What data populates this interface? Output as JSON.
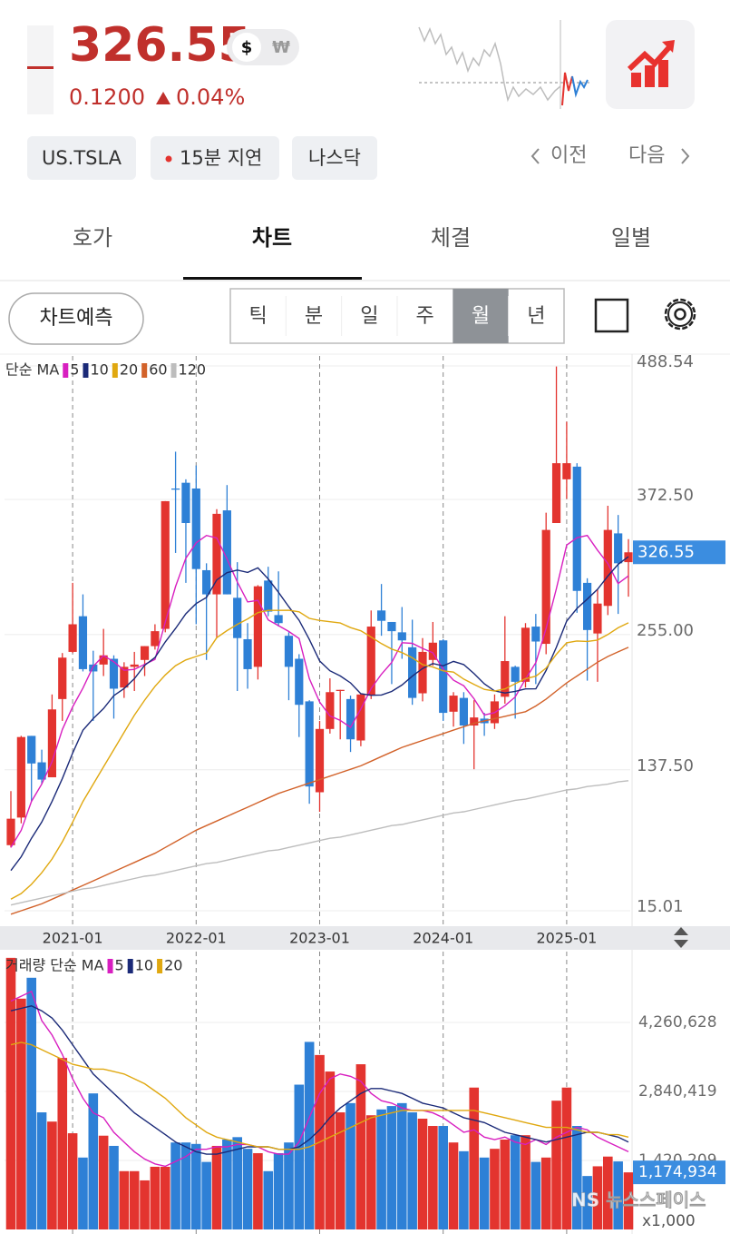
{
  "header": {
    "price": "326.55",
    "change": "0.1200",
    "change_pct": "0.04%",
    "currency": [
      "$",
      "₩"
    ],
    "chips": [
      "US.TSLA",
      "15분 지연",
      "나스닥"
    ],
    "prev": "이전",
    "next": "다음"
  },
  "tabs": {
    "items": [
      "호가",
      "차트",
      "체결",
      "일별"
    ],
    "active": 1
  },
  "toolbar": {
    "predict": "차트예측",
    "periods": [
      "틱",
      "분",
      "일",
      "주",
      "월",
      "년"
    ],
    "active": 4
  },
  "watermark": "NS 뉴스스페이스",
  "chart_data": [
    {
      "type": "candlestick",
      "legend_title": "단순 MA",
      "grid": true,
      "up_color": "#e3342f",
      "down_color": "#2e80d6",
      "categories": [
        null,
        null,
        null,
        null,
        null,
        null,
        "2021-01",
        null,
        null,
        null,
        null,
        null,
        null,
        null,
        null,
        null,
        null,
        null,
        "2022-01",
        null,
        null,
        null,
        null,
        null,
        null,
        null,
        null,
        null,
        null,
        null,
        "2023-01",
        null,
        null,
        null,
        null,
        null,
        null,
        null,
        null,
        null,
        null,
        null,
        "2024-01",
        null,
        null,
        null,
        null,
        null,
        null,
        null,
        null,
        null,
        null,
        null,
        "2025-01",
        null,
        null,
        null,
        null,
        null,
        null
      ],
      "open": [
        72,
        96,
        167,
        144,
        131,
        199,
        240,
        271,
        229,
        229,
        234,
        209,
        227,
        233,
        245,
        260,
        382,
        387,
        382,
        311,
        290,
        363,
        287,
        251,
        227,
        302,
        272,
        254,
        234,
        197,
        118,
        173,
        206,
        199,
        163,
        202,
        276,
        266,
        257,
        244,
        204,
        233,
        250,
        188,
        200,
        176,
        182,
        178,
        201,
        227,
        214,
        262,
        247,
        352,
        390,
        401,
        300,
        256,
        280,
        343,
        318
      ],
      "high": [
        119,
        167,
        167,
        155,
        203,
        239,
        300,
        290,
        241,
        260,
        237,
        231,
        240,
        245,
        264,
        371,
        414,
        390,
        402,
        317,
        364,
        385,
        318,
        265,
        298,
        314,
        310,
        257,
        238,
        198,
        180,
        217,
        207,
        202,
        204,
        276,
        299,
        266,
        279,
        268,
        252,
        266,
        251,
        205,
        205,
        198,
        187,
        203,
        271,
        228,
        265,
        273,
        361,
        488,
        440,
        404,
        304,
        294,
        367,
        359,
        338
      ],
      "low": [
        70,
        91,
        110,
        125,
        131,
        180,
        239,
        223,
        180,
        219,
        182,
        200,
        206,
        219,
        242,
        257,
        326,
        300,
        264,
        233,
        252,
        290,
        206,
        208,
        216,
        271,
        262,
        198,
        166,
        108,
        101,
        169,
        164,
        153,
        158,
        199,
        254,
        212,
        234,
        194,
        197,
        228,
        180,
        175,
        160,
        138,
        167,
        173,
        195,
        182,
        209,
        212,
        238,
        352,
        373,
        274,
        215,
        214,
        272,
        273,
        288
      ],
      "close": [
        95,
        166,
        143,
        129,
        190,
        235,
        264,
        225,
        223,
        237,
        208,
        227,
        229,
        245,
        258,
        371,
        381,
        352,
        312,
        290,
        360,
        290,
        252,
        225,
        297,
        275,
        265,
        227,
        194,
        123,
        173,
        205,
        207,
        164,
        203,
        262,
        267,
        258,
        250,
        200,
        240,
        248,
        187,
        202,
        176,
        183,
        178,
        197,
        232,
        214,
        261,
        249,
        346,
        404,
        404,
        293,
        259,
        282,
        346,
        317,
        326.55
      ],
      "ma": [
        {
          "name": "5",
          "color": "#d81fc0",
          "values": [
            70,
            85,
            110,
            125,
            144.6,
            172.6,
            192.2,
            208.6,
            227.4,
            236.8,
            231.4,
            224,
            224.8,
            229.2,
            233.4,
            266,
            296.8,
            321.4,
            334.8,
            341.2,
            339,
            320.8,
            300.8,
            283.4,
            284.8,
            267.8,
            262.8,
            257.8,
            251.6,
            216.8,
            196.4,
            184.4,
            180.4,
            174.4,
            190.4,
            208.2,
            220.6,
            230.8,
            248,
            247.4,
            243,
            239.2,
            225,
            215.4,
            210.6,
            199.2,
            185.2,
            187.2,
            193.2,
            200.8,
            216.4,
            230.6,
            260.4,
            294.8,
            332.8,
            339.2,
            341.2,
            328.4,
            316.8,
            299.4,
            306.11
          ]
        },
        {
          "name": "10",
          "color": "#1b2a78",
          "values": [
            50,
            62,
            78,
            92,
            110,
            130,
            152,
            172,
            182,
            190.7,
            202,
            208.1,
            216.7,
            228.3,
            235.1,
            248.7,
            260.4,
            273.1,
            282,
            287.3,
            302.5,
            308.8,
            311.1,
            309.1,
            313,
            303.4,
            291.8,
            279.3,
            267.5,
            250.8,
            232.1,
            223.6,
            219.1,
            213,
            203.6,
            202.3,
            202.5,
            205.6,
            211.2,
            218.9,
            225.6,
            229.9,
            227.9,
            231.7,
            229,
            221.1,
            212.2,
            206.1,
            204.3,
            205.7,
            207.8,
            207.9,
            223.8,
            244,
            266.8,
            277.8,
            285.9,
            294.4,
            305.8,
            316.1,
            322.7
          ]
        },
        {
          "name": "20",
          "color": "#e0a810",
          "values": [
            25,
            30,
            38,
            48,
            60,
            75,
            92,
            110,
            125,
            140,
            155,
            170,
            185,
            198,
            210,
            220,
            228,
            233,
            236,
            239,
            252.3,
            258.5,
            263.9,
            268.7,
            274.1,
            276.1,
            276.1,
            276.2,
            274.8,
            269.1,
            267.3,
            266.2,
            265.1,
            261.1,
            258.3,
            252.9,
            247.2,
            242.5,
            239.4,
            234.9,
            228.9,
            226.8,
            223.5,
            222.4,
            216.3,
            211.7,
            207.4,
            205.9,
            207.8,
            212.3,
            216.7,
            218.9,
            225.9,
            237.9,
            247.9,
            249.5,
            249.1,
            250.3,
            255.1,
            260.9,
            265.3
          ]
        },
        {
          "name": "60",
          "color": "#d2622a",
          "values": [
            12,
            15,
            18,
            21,
            25,
            29,
            33,
            37,
            41,
            45,
            49,
            53,
            57,
            61,
            65,
            70,
            75,
            80,
            85,
            89,
            93,
            97,
            101,
            105,
            109,
            113,
            117,
            120,
            123,
            126,
            129,
            132,
            135,
            138,
            141,
            145,
            149,
            153,
            157,
            160,
            163,
            166,
            169,
            172,
            175,
            178,
            180,
            182,
            184,
            186,
            188,
            193,
            199,
            206,
            213,
            219,
            225,
            231,
            236,
            240,
            244
          ]
        },
        {
          "name": "120",
          "color": "#bdbdbd",
          "values": [
            20,
            22,
            24,
            26,
            28,
            30,
            32,
            34,
            35,
            37,
            39,
            41,
            43,
            45,
            46,
            48,
            50,
            52,
            54,
            56,
            57,
            59,
            61,
            63,
            65,
            67,
            68,
            70,
            72,
            74,
            76,
            78,
            79,
            81,
            83,
            85,
            87,
            89,
            90,
            92,
            94,
            96,
            98,
            100,
            101,
            103,
            105,
            107,
            109,
            111,
            112,
            114,
            116,
            118,
            120,
            121,
            123,
            124,
            125,
            127,
            128
          ]
        }
      ],
      "ylim": [
        15.01,
        488.54
      ],
      "yticks": [
        15.01,
        {
          "value": 137.5,
          "label": "137.50"
        },
        {
          "value": 255,
          "label": "255.00"
        },
        {
          "value": 372.5,
          "label": "372.50"
        },
        488.54
      ]
    },
    {
      "type": "bar",
      "legend_title": "거래량 단순 MA",
      "unit": "x1,000",
      "grid": true,
      "up_color": "#e3342f",
      "down_color": "#2e80d6",
      "values": [
        5590000,
        4750000,
        5180000,
        2410000,
        2220000,
        3530000,
        1980000,
        1480000,
        2800000,
        1930000,
        1720000,
        1200000,
        1200000,
        1010000,
        1290000,
        1290000,
        1790000,
        1790000,
        1760000,
        1390000,
        1720000,
        1850000,
        1900000,
        1660000,
        1570000,
        1200000,
        1570000,
        1790000,
        2980000,
        3860000,
        3590000,
        3250000,
        2410000,
        2600000,
        3400000,
        2350000,
        2470000,
        2540000,
        2600000,
        2410000,
        2280000,
        2130000,
        2130000,
        1790000,
        1610000,
        2920000,
        1480000,
        1660000,
        1850000,
        1940000,
        1940000,
        1390000,
        1480000,
        2650000,
        2920000,
        2130000,
        1100000,
        1300000,
        1500000,
        1400000,
        1174934
      ],
      "value_labels": [
        null,
        null,
        null,
        null,
        null,
        null,
        null,
        null,
        null,
        null,
        null,
        null,
        null,
        null,
        null,
        null,
        null,
        null,
        null,
        null,
        null,
        null,
        null,
        null,
        null,
        null,
        null,
        null,
        null,
        null,
        null,
        null,
        null,
        null,
        null,
        null,
        null,
        null,
        null,
        null,
        null,
        null,
        null,
        null,
        null,
        null,
        null,
        null,
        null,
        null,
        null,
        null,
        null,
        null,
        null,
        null,
        null,
        null,
        null,
        null,
        "1,174,934"
      ],
      "ma": [
        {
          "name": "5",
          "color": "#d81fc0",
          "values": [
            4700000,
            4800000,
            4900000,
            4300000,
            4000000,
            3600000,
            3100000,
            2700000,
            2400000,
            2300000,
            2000000,
            1800000,
            1600000,
            1450000,
            1350000,
            1300000,
            1400000,
            1500000,
            1650000,
            1650000,
            1700000,
            1700000,
            1750000,
            1750000,
            1700000,
            1600000,
            1550000,
            1550000,
            1800000,
            2300000,
            2800000,
            3100000,
            3200000,
            3150000,
            3050000,
            2800000,
            2650000,
            2600000,
            2500000,
            2450000,
            2450000,
            2400000,
            2300000,
            2150000,
            2000000,
            2050000,
            1900000,
            1850000,
            1900000,
            1800000,
            1750000,
            1850000,
            1750000,
            1900000,
            2000000,
            2100000,
            2050000,
            1900000,
            1800000,
            1700000,
            1600000
          ]
        },
        {
          "name": "10",
          "color": "#1b2a78",
          "values": [
            4500000,
            4550000,
            4600000,
            4500000,
            4350000,
            4100000,
            3800000,
            3500000,
            3200000,
            3000000,
            2800000,
            2600000,
            2400000,
            2250000,
            2100000,
            1950000,
            1800000,
            1700000,
            1600000,
            1550000,
            1550000,
            1600000,
            1650000,
            1700000,
            1700000,
            1700000,
            1650000,
            1650000,
            1700000,
            1850000,
            2050000,
            2300000,
            2500000,
            2650000,
            2800000,
            2900000,
            2900000,
            2850000,
            2800000,
            2700000,
            2600000,
            2550000,
            2500000,
            2400000,
            2300000,
            2250000,
            2200000,
            2100000,
            2000000,
            1950000,
            1900000,
            1850000,
            1800000,
            1850000,
            1900000,
            1950000,
            2000000,
            2000000,
            1950000,
            1900000,
            1800000
          ]
        },
        {
          "name": "20",
          "color": "#e0a810",
          "values": [
            3800000,
            3850000,
            3800000,
            3700000,
            3600000,
            3500000,
            3400000,
            3350000,
            3300000,
            3300000,
            3250000,
            3200000,
            3100000,
            3000000,
            2850000,
            2700000,
            2500000,
            2300000,
            2150000,
            2000000,
            1900000,
            1850000,
            1800000,
            1750000,
            1700000,
            1700000,
            1650000,
            1650000,
            1650000,
            1700000,
            1800000,
            1900000,
            2000000,
            2100000,
            2200000,
            2300000,
            2350000,
            2400000,
            2450000,
            2450000,
            2450000,
            2450000,
            2450000,
            2450000,
            2450000,
            2450000,
            2400000,
            2350000,
            2300000,
            2250000,
            2200000,
            2150000,
            2100000,
            2100000,
            2100000,
            2050000,
            2000000,
            2000000,
            1950000,
            1950000,
            1900000
          ]
        }
      ],
      "ylim": [
        0,
        5680836
      ],
      "yticks": [
        {
          "value": 1420209,
          "label": "1,420,209"
        },
        {
          "value": 2840419,
          "label": "2,840,419"
        },
        {
          "value": 4260628,
          "label": "4,260,628"
        }
      ]
    }
  ]
}
